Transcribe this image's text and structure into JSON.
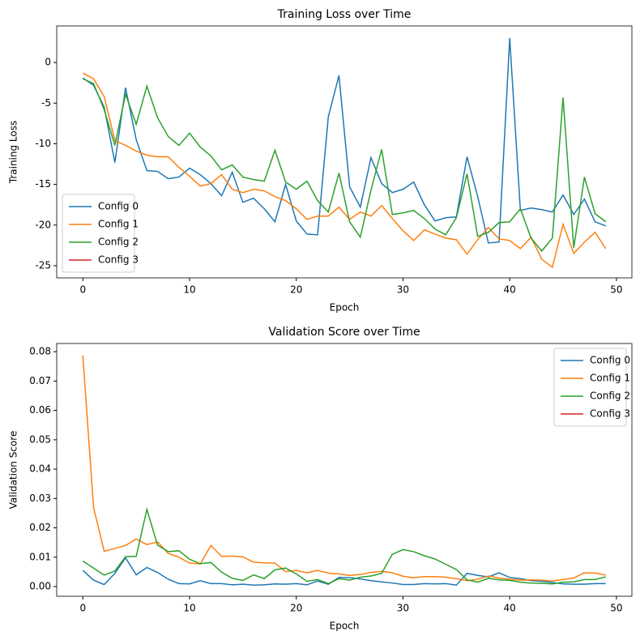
{
  "chart_data": [
    {
      "type": "line",
      "title": "Training Loss over Time",
      "xlabel": "Epoch",
      "ylabel": "Training Loss",
      "x": [
        0,
        1,
        2,
        3,
        4,
        5,
        6,
        7,
        8,
        9,
        10,
        11,
        12,
        13,
        14,
        15,
        16,
        17,
        18,
        19,
        20,
        21,
        22,
        23,
        24,
        25,
        26,
        27,
        28,
        29,
        30,
        31,
        32,
        33,
        34,
        35,
        36,
        37,
        38,
        39,
        40,
        41,
        42,
        43,
        44,
        45,
        46,
        47,
        48,
        49
      ],
      "series": [
        {
          "name": "Config 0",
          "color": "#1f77b4",
          "values": [
            -1.9,
            -2.8,
            -5.5,
            -12.3,
            -3.1,
            -9.5,
            -13.3,
            -13.4,
            -14.3,
            -14.1,
            -13,
            -13.8,
            -14.9,
            -16.4,
            -13.5,
            -17.2,
            -16.7,
            -18,
            -19.6,
            -15,
            -19.5,
            -21.1,
            -21.2,
            -6.7,
            -1.6,
            -15.3,
            -17.8,
            -11.7,
            -14.9,
            -16,
            -15.6,
            -14.7,
            -17.5,
            -19.5,
            -19.1,
            -19,
            -11.6,
            -16.5,
            -22.2,
            -22.1,
            3,
            -18.2,
            -17.9,
            -18.1,
            -18.4,
            -16.3,
            -18.7,
            -16.8,
            -19.6,
            -20.1
          ]
        },
        {
          "name": "Config 1",
          "color": "#ff7f0e",
          "values": [
            -1.3,
            -2,
            -4.2,
            -9.6,
            -10.2,
            -10.9,
            -11.4,
            -11.6,
            -11.6,
            -12.9,
            -14,
            -15.2,
            -14.9,
            -13.8,
            -15.6,
            -16,
            -15.6,
            -15.8,
            -16.5,
            -17,
            -18,
            -19.3,
            -18.9,
            -18.9,
            -17.8,
            -19.3,
            -18.4,
            -18.9,
            -17.6,
            -19.2,
            -20.7,
            -21.9,
            -20.6,
            -21.1,
            -21.6,
            -21.8,
            -23.6,
            -21.8,
            -20.3,
            -21.7,
            -21.9,
            -22.9,
            -21.5,
            -24.2,
            -25.2,
            -19.9,
            -23.5,
            -22.1,
            -20.9,
            -22.9
          ]
        },
        {
          "name": "Config 2",
          "color": "#2ca02c",
          "values": [
            -2,
            -2.6,
            -5.8,
            -10.2,
            -3.9,
            -7.6,
            -2.9,
            -6.8,
            -9.1,
            -10.2,
            -8.7,
            -10.4,
            -11.5,
            -13.2,
            -12.6,
            -14.1,
            -14.4,
            -14.6,
            -10.8,
            -14.7,
            -15.6,
            -14.6,
            -17,
            -18.4,
            -13.6,
            -19.6,
            -21.5,
            -15.7,
            -10.7,
            -18.7,
            -18.5,
            -18.2,
            -19.2,
            -20.5,
            -21.2,
            -19.1,
            -13.7,
            -21.4,
            -20.9,
            -19.7,
            -19.6,
            -18,
            -21.6,
            -23.2,
            -21.6,
            -4.3,
            -22.8,
            -14.1,
            -18.6,
            -19.6
          ]
        },
        {
          "name": "Config 3",
          "color": "#d62728",
          "values": [
            null,
            null,
            null,
            null,
            null,
            null,
            null,
            null,
            null,
            null,
            null,
            null,
            null,
            null,
            null,
            null,
            null,
            null,
            null,
            null,
            null,
            null,
            null,
            null,
            null,
            null,
            null,
            null,
            null,
            null,
            null,
            null,
            null,
            null,
            null,
            null,
            null,
            null,
            null,
            null,
            null,
            null,
            null,
            null,
            null,
            null,
            null,
            null,
            null,
            null
          ]
        }
      ],
      "xlim": [
        -2.45,
        51.45
      ],
      "ylim": [
        -26.5,
        4.5
      ],
      "xticks": [
        0,
        10,
        20,
        30,
        40,
        50
      ],
      "yticks": [
        -25,
        -20,
        -15,
        -10,
        -5,
        0
      ],
      "legend": "lower left"
    },
    {
      "type": "line",
      "title": "Validation Score over Time",
      "xlabel": "Epoch",
      "ylabel": "Validation Score",
      "x": [
        0,
        1,
        2,
        3,
        4,
        5,
        6,
        7,
        8,
        9,
        10,
        11,
        12,
        13,
        14,
        15,
        16,
        17,
        18,
        19,
        20,
        21,
        22,
        23,
        24,
        25,
        26,
        27,
        28,
        29,
        30,
        31,
        32,
        33,
        34,
        35,
        36,
        37,
        38,
        39,
        40,
        41,
        42,
        43,
        44,
        45,
        46,
        47,
        48,
        49
      ],
      "series": [
        {
          "name": "Config 0",
          "color": "#1f77b4",
          "values": [
            0.0055,
            0.0022,
            0.0007,
            0.0045,
            0.0098,
            0.004,
            0.0065,
            0.0048,
            0.0025,
            0.001,
            0.0009,
            0.002,
            0.001,
            0.001,
            0.0006,
            0.0008,
            0.0005,
            0.0006,
            0.0009,
            0.0008,
            0.001,
            0.0006,
            0.0019,
            0.0008,
            0.0031,
            0.003,
            0.0026,
            0.002,
            0.0016,
            0.0012,
            0.0007,
            0.0007,
            0.001,
            0.0009,
            0.001,
            0.0005,
            0.0045,
            0.0038,
            0.0033,
            0.0047,
            0.0031,
            0.0027,
            0.002,
            0.0018,
            0.0014,
            0.0009,
            0.0008,
            0.0008,
            0.001,
            0.001
          ]
        },
        {
          "name": "Config 1",
          "color": "#ff7f0e",
          "values": [
            0.0787,
            0.027,
            0.012,
            0.013,
            0.014,
            0.0162,
            0.0143,
            0.0152,
            0.0113,
            0.01,
            0.008,
            0.0077,
            0.014,
            0.0103,
            0.0104,
            0.0101,
            0.0083,
            0.0081,
            0.008,
            0.0051,
            0.0055,
            0.0047,
            0.0055,
            0.0046,
            0.0043,
            0.0038,
            0.0041,
            0.0048,
            0.0052,
            0.0047,
            0.0035,
            0.003,
            0.0034,
            0.0034,
            0.0032,
            0.0027,
            0.002,
            0.0025,
            0.0036,
            0.0029,
            0.0025,
            0.0022,
            0.0023,
            0.0022,
            0.0019,
            0.0024,
            0.0029,
            0.0047,
            0.0046,
            0.0039
          ]
        },
        {
          "name": "Config 2",
          "color": "#2ca02c",
          "values": [
            0.0087,
            0.0063,
            0.0039,
            0.0053,
            0.0102,
            0.0103,
            0.0263,
            0.0141,
            0.0119,
            0.0122,
            0.0093,
            0.0078,
            0.0082,
            0.0049,
            0.0028,
            0.0021,
            0.004,
            0.0027,
            0.0057,
            0.0063,
            0.0043,
            0.0018,
            0.0024,
            0.001,
            0.0027,
            0.0022,
            0.0032,
            0.0036,
            0.0045,
            0.011,
            0.0126,
            0.0119,
            0.0105,
            0.0094,
            0.0076,
            0.0058,
            0.0023,
            0.0015,
            0.0028,
            0.0023,
            0.0021,
            0.0015,
            0.0012,
            0.0011,
            0.0009,
            0.0015,
            0.0016,
            0.0024,
            0.0024,
            0.0033
          ]
        },
        {
          "name": "Config 3",
          "color": "#d62728",
          "values": [
            null,
            null,
            null,
            null,
            null,
            null,
            null,
            null,
            null,
            null,
            null,
            null,
            null,
            null,
            null,
            null,
            null,
            null,
            null,
            null,
            null,
            null,
            null,
            null,
            null,
            null,
            null,
            null,
            null,
            null,
            null,
            null,
            null,
            null,
            null,
            null,
            null,
            null,
            null,
            null,
            null,
            null,
            null,
            null,
            null,
            null,
            null,
            null,
            null,
            null
          ]
        }
      ],
      "xlim": [
        -2.45,
        51.45
      ],
      "ylim": [
        -0.0033,
        0.0828
      ],
      "xticks": [
        0,
        10,
        20,
        30,
        40,
        50
      ],
      "yticks": [
        {
          "value": 0,
          "label": "0.00"
        },
        {
          "value": 0.01,
          "label": "0.01"
        },
        {
          "value": 0.02,
          "label": "0.02"
        },
        {
          "value": 0.03,
          "label": "0.03"
        },
        {
          "value": 0.04,
          "label": "0.04"
        },
        {
          "value": 0.05,
          "label": "0.05"
        },
        {
          "value": 0.06,
          "label": "0.06"
        },
        {
          "value": 0.07,
          "label": "0.07"
        },
        {
          "value": 0.08,
          "label": "0.08"
        }
      ],
      "legend": "upper right"
    }
  ]
}
